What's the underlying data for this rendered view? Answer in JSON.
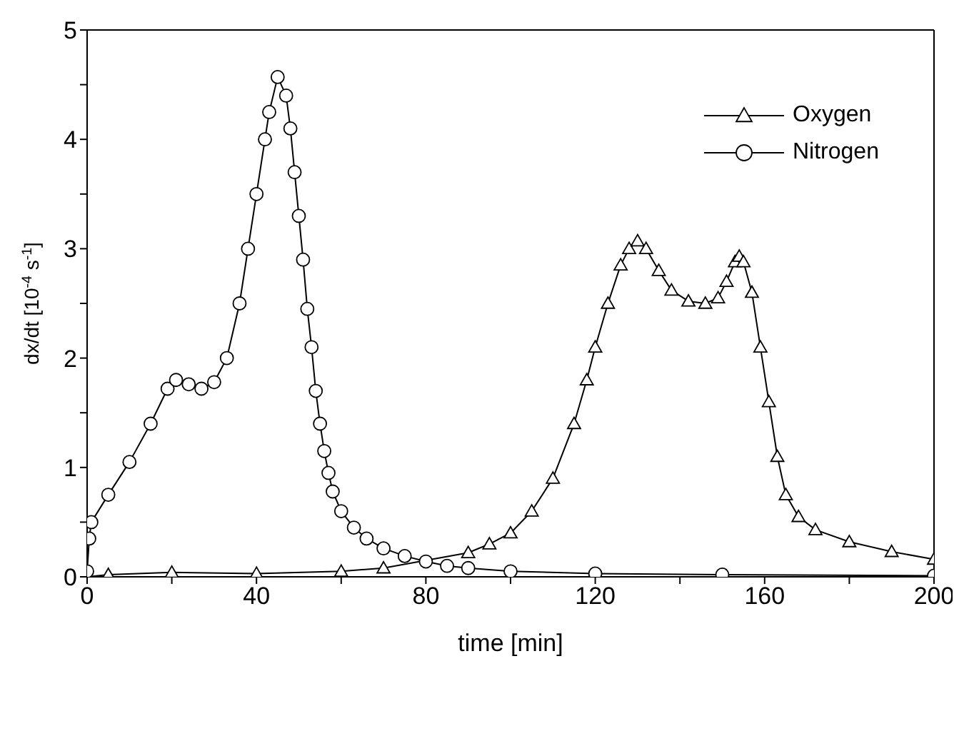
{
  "chart_data": {
    "type": "line",
    "xlabel": "time [min]",
    "ylabel": "dx/dt [10$^{-4}$ s$^{-1}$]",
    "xlim": [
      0,
      200
    ],
    "ylim": [
      0,
      5
    ],
    "xticks": [
      0,
      {
        "value": 20,
        "label": null
      },
      40,
      {
        "value": 60,
        "label": null
      },
      80,
      {
        "value": 100,
        "label": null
      },
      120,
      {
        "value": 140,
        "label": null
      },
      160,
      {
        "value": 180,
        "label": null
      },
      200
    ],
    "yticks": [
      0,
      {
        "value": 0.5,
        "label": null
      },
      1,
      {
        "value": 1.5,
        "label": null
      },
      2,
      {
        "value": 2.5,
        "label": null
      },
      3,
      {
        "value": 3.5,
        "label": null
      },
      4,
      {
        "value": 4.5,
        "label": null
      },
      5
    ],
    "grid": false,
    "legend": "top right",
    "line_style": "solid",
    "series": [
      {
        "name": "Oxygen",
        "color": "#000000",
        "marker": "triangle",
        "x": [
          0,
          5,
          20,
          40,
          60,
          70,
          90,
          95,
          100,
          105,
          110,
          115,
          118,
          120,
          123,
          126,
          128,
          130,
          132,
          135,
          138,
          142,
          146,
          149,
          151,
          153,
          154,
          155,
          157,
          159,
          161,
          163,
          165,
          168,
          172,
          180,
          190,
          200
        ],
        "values": [
          0,
          0.02,
          0.04,
          0.03,
          0.05,
          0.08,
          0.22,
          0.3,
          0.4,
          0.6,
          0.9,
          1.4,
          1.8,
          2.1,
          2.5,
          2.85,
          3.0,
          3.07,
          3.0,
          2.8,
          2.62,
          2.52,
          2.5,
          2.55,
          2.7,
          2.88,
          2.93,
          2.88,
          2.6,
          2.1,
          1.6,
          1.1,
          0.75,
          0.55,
          0.43,
          0.32,
          0.23,
          0.16
        ]
      },
      {
        "name": "Nitrogen",
        "color": "#000000",
        "marker": "circle",
        "x": [
          0,
          0.5,
          1,
          5,
          10,
          15,
          19,
          21,
          24,
          27,
          30,
          33,
          36,
          38,
          40,
          42,
          43,
          45,
          47,
          48,
          49,
          50,
          51,
          52,
          53,
          54,
          55,
          56,
          57,
          58,
          60,
          63,
          66,
          70,
          75,
          80,
          85,
          90,
          100,
          120,
          150,
          200
        ],
        "values": [
          0.05,
          0.35,
          0.5,
          0.75,
          1.05,
          1.4,
          1.72,
          1.8,
          1.76,
          1.72,
          1.78,
          2.0,
          2.5,
          3.0,
          3.5,
          4.0,
          4.25,
          4.57,
          4.4,
          4.1,
          3.7,
          3.3,
          2.9,
          2.45,
          2.1,
          1.7,
          1.4,
          1.15,
          0.95,
          0.78,
          0.6,
          0.45,
          0.35,
          0.26,
          0.19,
          0.14,
          0.1,
          0.08,
          0.05,
          0.03,
          0.02,
          0.01
        ]
      }
    ]
  }
}
